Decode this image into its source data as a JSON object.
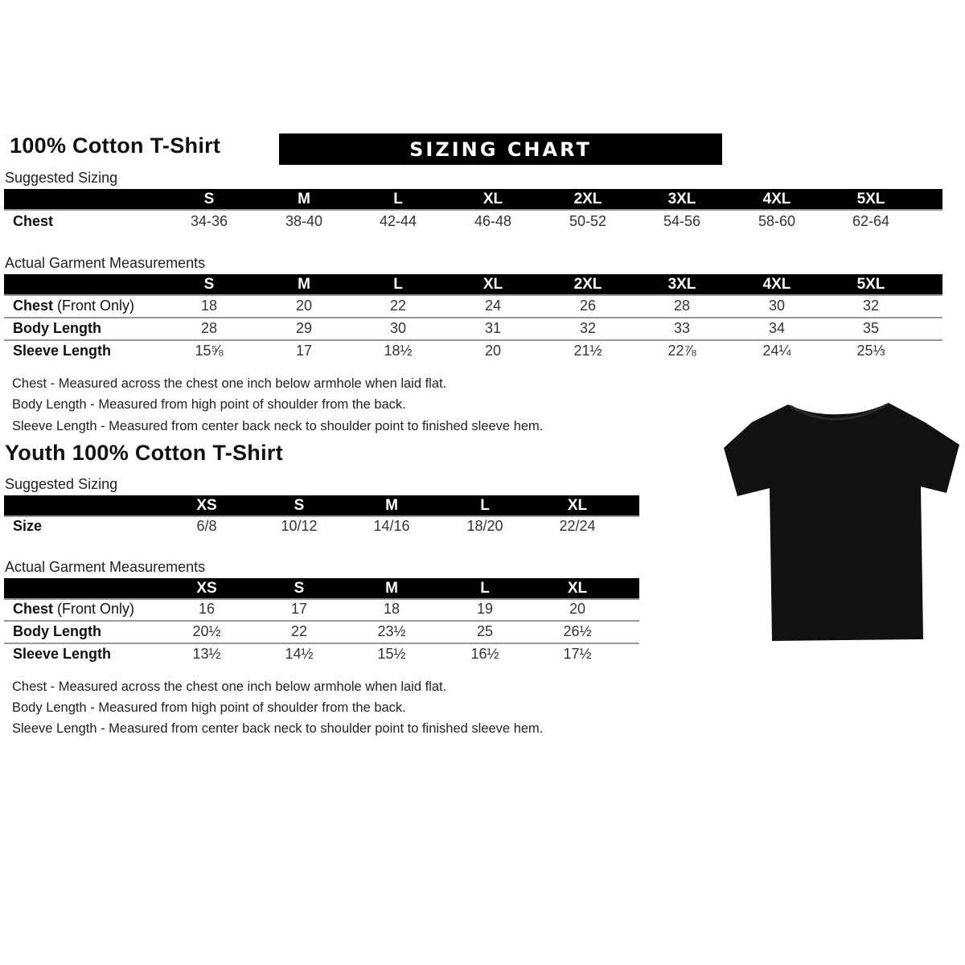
{
  "adult": {
    "title": "100% Cotton T-Shirt",
    "banner": "SIZING CHART",
    "suggested_label": "Suggested Sizing",
    "sizes": [
      "S",
      "M",
      "L",
      "XL",
      "2XL",
      "3XL",
      "4XL",
      "5XL"
    ],
    "suggested_rows": [
      {
        "label": "Chest",
        "values": [
          "34-36",
          "38-40",
          "42-44",
          "46-48",
          "50-52",
          "54-56",
          "58-60",
          "62-64"
        ]
      }
    ],
    "actual_label": "Actual Garment Measurements",
    "actual_rows": [
      {
        "label": "Chest",
        "label_note": "(Front Only)",
        "values": [
          "18",
          "20",
          "22",
          "24",
          "26",
          "28",
          "30",
          "32"
        ]
      },
      {
        "label": "Body Length",
        "label_note": "",
        "values": [
          "28",
          "29",
          "30",
          "31",
          "32",
          "33",
          "34",
          "35"
        ]
      },
      {
        "label": "Sleeve Length",
        "label_note": "",
        "values": [
          "15⅝",
          "17",
          "18½",
          "20",
          "21½",
          "22⅞",
          "24¼",
          "25⅓"
        ]
      }
    ],
    "notes": [
      "Chest - Measured across the chest one inch below armhole when laid flat.",
      "Body Length - Measured from high point of shoulder from the back.",
      "Sleeve Length - Measured from center back neck to shoulder point to finished sleeve hem."
    ]
  },
  "youth": {
    "title": "Youth 100% Cotton T-Shirt",
    "suggested_label": "Suggested Sizing",
    "sizes": [
      "XS",
      "S",
      "M",
      "L",
      "XL"
    ],
    "suggested_rows": [
      {
        "label": "Size",
        "values": [
          "6/8",
          "10/12",
          "14/16",
          "18/20",
          "22/24"
        ]
      }
    ],
    "actual_label": "Actual Garment Measurements",
    "actual_rows": [
      {
        "label": "Chest",
        "label_note": "(Front Only)",
        "values": [
          "16",
          "17",
          "18",
          "19",
          "20"
        ]
      },
      {
        "label": "Body Length",
        "label_note": "",
        "values": [
          "20½",
          "22",
          "23½",
          "25",
          "26½"
        ]
      },
      {
        "label": "Sleeve Length",
        "label_note": "",
        "values": [
          "13½",
          "14½",
          "15½",
          "16½",
          "17½"
        ]
      }
    ],
    "notes": [
      "Chest - Measured across the chest one inch below armhole when laid flat.",
      "Body Length - Measured from high point of shoulder from the back.",
      "Sleeve Length - Measured from center back neck to shoulder point to finished sleeve hem."
    ]
  },
  "colors": {
    "header_bar": "#000000",
    "shirt": "#111111",
    "row_divider": "#999999"
  }
}
